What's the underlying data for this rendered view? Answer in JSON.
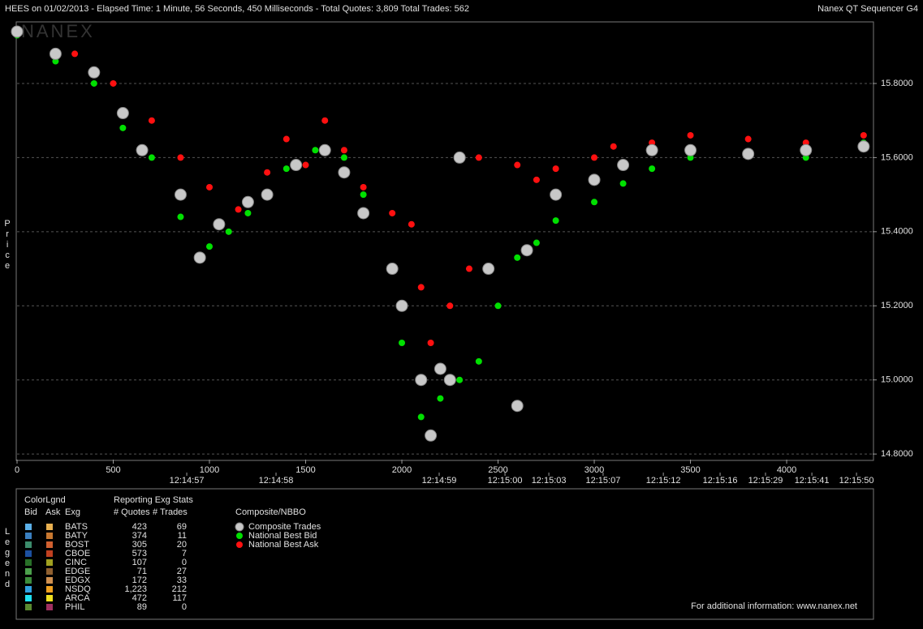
{
  "chart_data": {
    "type": "scatter",
    "title": "HEES on 01/02/2013  -  Elapsed Time: 1 Minute, 56 Seconds, 450 Milliseconds  -  Total Quotes: 3,809  Total Trades: 562",
    "subtitle": "Nanex QT Sequencer G4",
    "watermark": "NANEX",
    "y_label": "Price",
    "xlim": [
      0,
      4447
    ],
    "ylim": [
      14.785,
      15.964
    ],
    "xticks": [
      0,
      500,
      1000,
      1500,
      2000,
      2500,
      3000,
      3500,
      4000
    ],
    "yticks": [
      {
        "value": 14.8,
        "label": "14.8000"
      },
      {
        "value": 15.0,
        "label": "15.0000"
      },
      {
        "value": 15.2,
        "label": "15.2000"
      },
      {
        "value": 15.4,
        "label": "15.4000"
      },
      {
        "value": 15.6,
        "label": "15.6000"
      },
      {
        "value": 15.8,
        "label": "15.8000"
      }
    ],
    "time_ticks": [
      {
        "value": 882,
        "label": "12:14:57"
      },
      {
        "value": 1346,
        "label": "12:14:58"
      },
      {
        "value": 2194,
        "label": "12:14:59"
      },
      {
        "value": 2536,
        "label": "12:15:00"
      },
      {
        "value": 2764,
        "label": "12:15:03"
      },
      {
        "value": 3046,
        "label": "12:15:07"
      },
      {
        "value": 3359,
        "label": "12:15:12"
      },
      {
        "value": 3654,
        "label": "12:15:16"
      },
      {
        "value": 3890,
        "label": "12:15:29"
      },
      {
        "value": 4131,
        "label": "12:15:41"
      },
      {
        "value": 4363,
        "label": "12:15:50"
      }
    ],
    "grid": true,
    "series": [
      {
        "name": "Composite Trades",
        "color": "#c8c8c8",
        "x": [
          0,
          200,
          400,
          550,
          650,
          850,
          950,
          1050,
          1200,
          1300,
          1450,
          1600,
          1700,
          1800,
          1950,
          2000,
          2100,
          2150,
          2200,
          2250,
          2300,
          2450,
          2600,
          2650,
          2800,
          3000,
          3150,
          3300,
          3500,
          3800,
          4100,
          4400
        ],
        "values": [
          15.94,
          15.88,
          15.83,
          15.72,
          15.62,
          15.5,
          15.33,
          15.42,
          15.48,
          15.5,
          15.58,
          15.62,
          15.56,
          15.45,
          15.3,
          15.2,
          15.0,
          14.85,
          15.03,
          15.0,
          15.6,
          15.3,
          14.93,
          15.35,
          15.5,
          15.54,
          15.58,
          15.62,
          15.62,
          15.61,
          15.62,
          15.63
        ]
      },
      {
        "name": "National Best Bid",
        "color": "#00e000",
        "x": [
          0,
          200,
          400,
          550,
          700,
          850,
          1000,
          1100,
          1200,
          1300,
          1400,
          1550,
          1700,
          1800,
          1950,
          2000,
          2100,
          2200,
          2300,
          2400,
          2500,
          2600,
          2700,
          2800,
          3000,
          3150,
          3300,
          3500,
          3800,
          4100,
          4400
        ],
        "values": [
          15.93,
          15.86,
          15.8,
          15.68,
          15.6,
          15.44,
          15.36,
          15.4,
          15.45,
          15.5,
          15.57,
          15.62,
          15.6,
          15.5,
          15.3,
          15.1,
          14.9,
          14.95,
          15.0,
          15.05,
          15.2,
          15.33,
          15.37,
          15.43,
          15.48,
          15.53,
          15.57,
          15.6,
          15.61,
          15.6,
          15.64
        ]
      },
      {
        "name": "National Best Ask",
        "color": "#ff1010",
        "x": [
          0,
          300,
          500,
          700,
          850,
          1000,
          1150,
          1300,
          1400,
          1500,
          1600,
          1700,
          1800,
          1950,
          2050,
          2100,
          2150,
          2250,
          2350,
          2400,
          2600,
          2700,
          2800,
          3000,
          3100,
          3300,
          3500,
          3800,
          4100,
          4400
        ],
        "values": [
          15.94,
          15.88,
          15.8,
          15.7,
          15.6,
          15.52,
          15.46,
          15.56,
          15.65,
          15.58,
          15.7,
          15.62,
          15.52,
          15.45,
          15.42,
          15.25,
          15.1,
          15.2,
          15.3,
          15.6,
          15.58,
          15.54,
          15.57,
          15.6,
          15.63,
          15.64,
          15.66,
          15.65,
          15.64,
          15.66
        ]
      }
    ],
    "nbbo_title": "Composite/NBBO",
    "legend_side": "Legend",
    "legend_table": {
      "title": "ColorLgnd",
      "stats_title": "Reporting Exg Stats",
      "headers": [
        "Bid",
        "Ask",
        "Exg",
        "# Quotes",
        "# Trades"
      ],
      "rows": [
        {
          "bid_color": "#5bb0e8",
          "ask_color": "#e8b050",
          "cells": [
            "BATS",
            "423",
            "69"
          ]
        },
        {
          "bid_color": "#3a7fc0",
          "ask_color": "#c87830",
          "cells": [
            "BATY",
            "374",
            "11"
          ]
        },
        {
          "bid_color": "#3c8c6c",
          "ask_color": "#d06030",
          "cells": [
            "BOST",
            "305",
            "20"
          ]
        },
        {
          "bid_color": "#1c50a0",
          "ask_color": "#c04020",
          "cells": [
            "CBOE",
            "573",
            "7"
          ]
        },
        {
          "bid_color": "#287028",
          "ask_color": "#a0a020",
          "cells": [
            "CINC",
            "107",
            "0"
          ]
        },
        {
          "bid_color": "#4ca04c",
          "ask_color": "#906030",
          "cells": [
            "EDGE",
            "71",
            "27"
          ]
        },
        {
          "bid_color": "#3c8c3c",
          "ask_color": "#d09050",
          "cells": [
            "EDGX",
            "172",
            "33"
          ]
        },
        {
          "bid_color": "#30a0e0",
          "ask_color": "#f0a020",
          "cells": [
            "NSDQ",
            "1,223",
            "212"
          ]
        },
        {
          "bid_color": "#20e0f0",
          "ask_color": "#f0e020",
          "cells": [
            "ARCA",
            "472",
            "117"
          ]
        },
        {
          "bid_color": "#5a8a30",
          "ask_color": "#a03060",
          "cells": [
            "PHIL",
            "89",
            "0"
          ]
        }
      ]
    },
    "footer": "For additional information: www.nanex.net"
  }
}
